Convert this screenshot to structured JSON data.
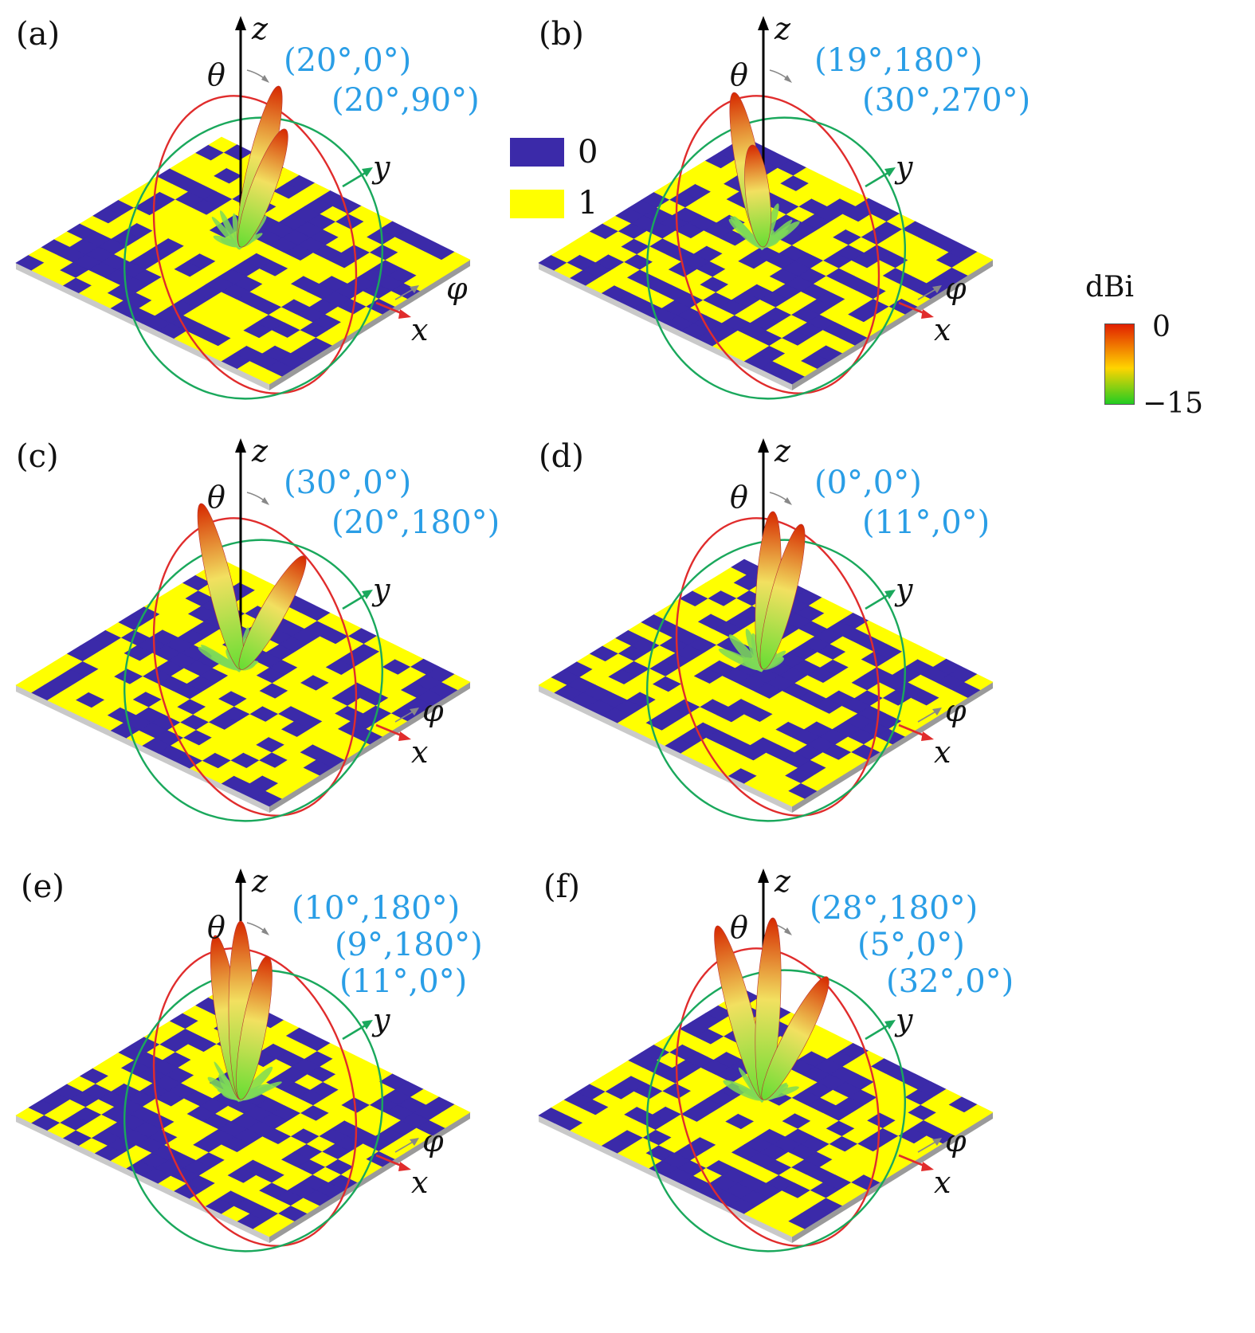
{
  "panels": [
    {
      "id": "a",
      "label": "(a)",
      "annotations": [
        "(20°,0°)",
        "(20°,90°)"
      ],
      "beam_count": 2
    },
    {
      "id": "b",
      "label": "(b)",
      "annotations": [
        "(19°,180°)",
        "(30°,270°)"
      ],
      "beam_count": 2
    },
    {
      "id": "c",
      "label": "(c)",
      "annotations": [
        "(30°,0°)",
        "(20°,180°)"
      ],
      "beam_count": 2
    },
    {
      "id": "d",
      "label": "(d)",
      "annotations": [
        "(0°,0°)",
        "(11°,0°)"
      ],
      "beam_count": 2
    },
    {
      "id": "e",
      "label": "(e)",
      "annotations": [
        "(10°,180°)",
        "(9°,180°)",
        "(11°,0°)"
      ],
      "beam_count": 3
    },
    {
      "id": "f",
      "label": "(f)",
      "annotations": [
        "(28°,180°)",
        "(5°,0°)",
        "(32°,0°)"
      ],
      "beam_count": 3
    }
  ],
  "axis_labels": {
    "z": "z",
    "theta": "θ",
    "y": "y",
    "phi": "φ",
    "x": "x"
  },
  "legend": {
    "items": [
      {
        "label": "0",
        "color": "#3b2aa9"
      },
      {
        "label": "1",
        "color": "#ffff00"
      }
    ]
  },
  "colorbar": {
    "title": "dBi",
    "max_label": "0",
    "min_label": "−15",
    "colors": [
      "#e11f00",
      "#ffd400",
      "#22cc22"
    ]
  },
  "colors": {
    "annotation": "#2a9ee6",
    "ring_xz": "#e02c2c",
    "ring_yz": "#1aa85c",
    "y_axis": "#1aa85c",
    "x_axis": "#e02c2c",
    "phi_arrow": "#888888",
    "state_0": "#3b2aa9",
    "state_1": "#ffff00"
  }
}
